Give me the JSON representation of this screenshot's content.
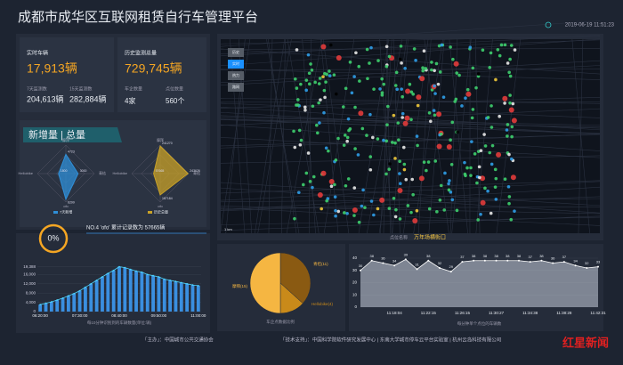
{
  "header": {
    "title": "成都市成华区互联网租赁自行车管理平台",
    "time": "2019-06-19 11:51:23"
  },
  "stats": {
    "realtime_label": "实时车辆",
    "realtime_value": "17,913辆",
    "d7_label": "7天监测数",
    "d7_value": "204,613辆",
    "d15_label": "15天监测数",
    "d15_value": "282,884辆",
    "history_label": "历史监测总量",
    "history_value": "729,745辆",
    "companies_label": "车企数量",
    "companies_value": "4家",
    "points_label": "点位数量",
    "points_value": "560个"
  },
  "section_title": "新增量 | 总量",
  "gauge": {
    "value": 0,
    "label": "0%"
  },
  "rank_note": "NO.4 'ofo' 累计记录数为 57665辆",
  "map": {
    "buttons": [
      "历史",
      "实时",
      "热力",
      "路网"
    ],
    "point_label": "点位名称",
    "point_name": "万年场横街口",
    "scale": "1 km"
  },
  "chart_data": [
    {
      "type": "radar",
      "axes": [
        "摩拜",
        "青桔",
        "ofo",
        "Hellobike"
      ],
      "rlim": [
        0,
        7000
      ],
      "series": [
        {
          "name": "7天新增",
          "color": "#2f8fd8",
          "values": [
            4723,
            3000,
            6299,
            1800
          ]
        }
      ]
    },
    {
      "type": "radar",
      "axes": [
        "摩拜",
        "青桔",
        "ofo",
        "Hellobike"
      ],
      "rlim": [
        0,
        250000
      ],
      "series": [
        {
          "name": "历史总量",
          "color": "#c9a227",
          "values": [
            241270,
            243626,
            187184,
            57665
          ]
        }
      ]
    },
    {
      "type": "bar",
      "caption": "每10分钟识别到的车辆数量(单位:辆)",
      "categories": [
        "06:20:00",
        null,
        null,
        null,
        null,
        null,
        null,
        "07:30:00",
        null,
        null,
        null,
        null,
        null,
        null,
        "08:40:00",
        null,
        null,
        null,
        null,
        null,
        null,
        "09:50:00",
        null,
        null,
        null,
        null,
        null,
        null,
        "11:00:00"
      ],
      "values": [
        3000,
        3600,
        4200,
        5000,
        5800,
        6800,
        7800,
        9000,
        10500,
        12000,
        13500,
        15000,
        16500,
        17800,
        19388,
        19000,
        18200,
        17500,
        17000,
        16000,
        15500,
        15000,
        14000,
        13500,
        13000,
        12500,
        12000,
        11500,
        11200
      ],
      "color": "#3a8fe0",
      "line_color": "#4fd6ff",
      "ylim": [
        0,
        20000
      ],
      "yticks": [
        0,
        {
          "value": 4000,
          "label": "4,000"
        },
        {
          "value": 8000,
          "label": "8,000"
        },
        {
          "value": 12000,
          "label": "12,000"
        },
        {
          "value": 16000,
          "label": "16,000"
        },
        {
          "value": 19388,
          "label": "19,388"
        }
      ]
    },
    {
      "type": "pie",
      "caption": "车企点数据比例",
      "categories": [
        "青桔",
        "Hellobike",
        "摩拜"
      ],
      "values": [
        11,
        4,
        15
      ],
      "value_labels": [
        "青桔(11)",
        "Hellobike(4)",
        "摩拜(15)"
      ],
      "colors": [
        "#8a5a12",
        "#c98a1a",
        "#f5b642"
      ]
    },
    {
      "type": "line",
      "caption": "每分钟单个点位的车辆数",
      "categories": [
        null,
        null,
        null,
        "11:18:04",
        null,
        null,
        "11:22:15",
        null,
        null,
        "11:26:15",
        null,
        null,
        "11:30:27",
        null,
        null,
        "11:34:38",
        null,
        null,
        "11:38:28",
        null,
        null,
        "11:42:31"
      ],
      "values": [
        30,
        38,
        36,
        34,
        39,
        31,
        38,
        32,
        29,
        37,
        38,
        38,
        38,
        38,
        38,
        37,
        38,
        36,
        37,
        34,
        32,
        33
      ],
      "color": "#ffffff",
      "ylim": [
        0,
        40
      ],
      "yticks": [
        0,
        10,
        20,
        30,
        40
      ],
      "grid": true
    }
  ],
  "footer": {
    "host": "「主办」：中国城市公共交通协会",
    "support": "「技术支持」：中国科学院软件研究发展中心 | 东南大学城市停车云平台实验室 | 杭州云岛科技有限公司",
    "logo": "红星新闻"
  }
}
